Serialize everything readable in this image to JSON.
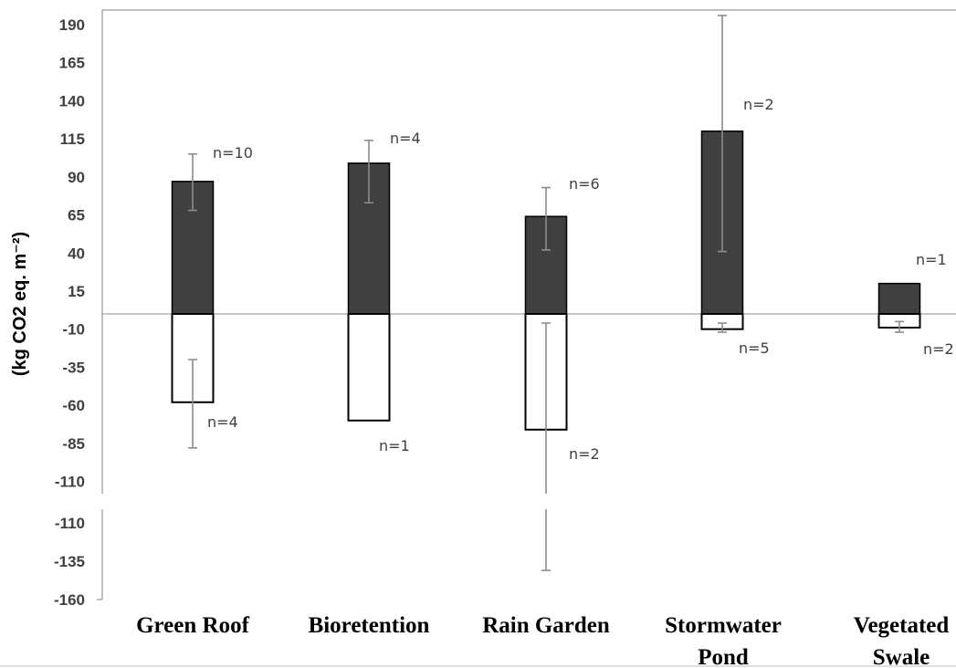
{
  "chart_data": {
    "type": "bar",
    "ylabel": "(kg CO2 eq. m⁻²)",
    "ylim_upper": [
      -117,
      193
    ],
    "ylim_lower": [
      -162,
      -103
    ],
    "ticks_upper": [
      190,
      165,
      140,
      115,
      90,
      65,
      40,
      15,
      -10,
      -35,
      -60,
      -85,
      -110
    ],
    "ticks_lower": [
      -110,
      -135,
      -160
    ],
    "categories": [
      {
        "line1": "Green Roof",
        "line2": ""
      },
      {
        "line1": "Bioretention",
        "line2": ""
      },
      {
        "line1": "Rain Garden",
        "line2": ""
      },
      {
        "line1": "Stormwater",
        "line2": "Pond"
      },
      {
        "line1": "Vegetated",
        "line2": "Swale"
      }
    ],
    "series": [
      {
        "fill": "#404040",
        "values": [
          87,
          99,
          64,
          120,
          20
        ],
        "error_low": [
          68,
          73,
          42,
          41,
          null
        ],
        "error_high": [
          105,
          114,
          83,
          196,
          null
        ],
        "n_labels": [
          "n=10",
          "n=4",
          "n=6",
          "n=2",
          "n=1"
        ]
      },
      {
        "fill": "#ffffff",
        "values": [
          -58,
          -70,
          -76,
          -10,
          -9
        ],
        "error_low": [
          -88,
          null,
          -141,
          -12,
          -12
        ],
        "error_high": [
          -30,
          null,
          -6,
          -6,
          -5
        ],
        "n_labels": [
          "n=4",
          "n=1",
          "n=2",
          "n=5",
          "n=2"
        ]
      }
    ],
    "zero_line": 0,
    "axis_break": true
  },
  "colors": {
    "positive_bar": "#404040",
    "negative_bar": "#ffffff",
    "bar_outline": "#000000",
    "zero_line": "#a6a6a6",
    "error_bar": "#8c8c8c",
    "axis": "#808080"
  }
}
